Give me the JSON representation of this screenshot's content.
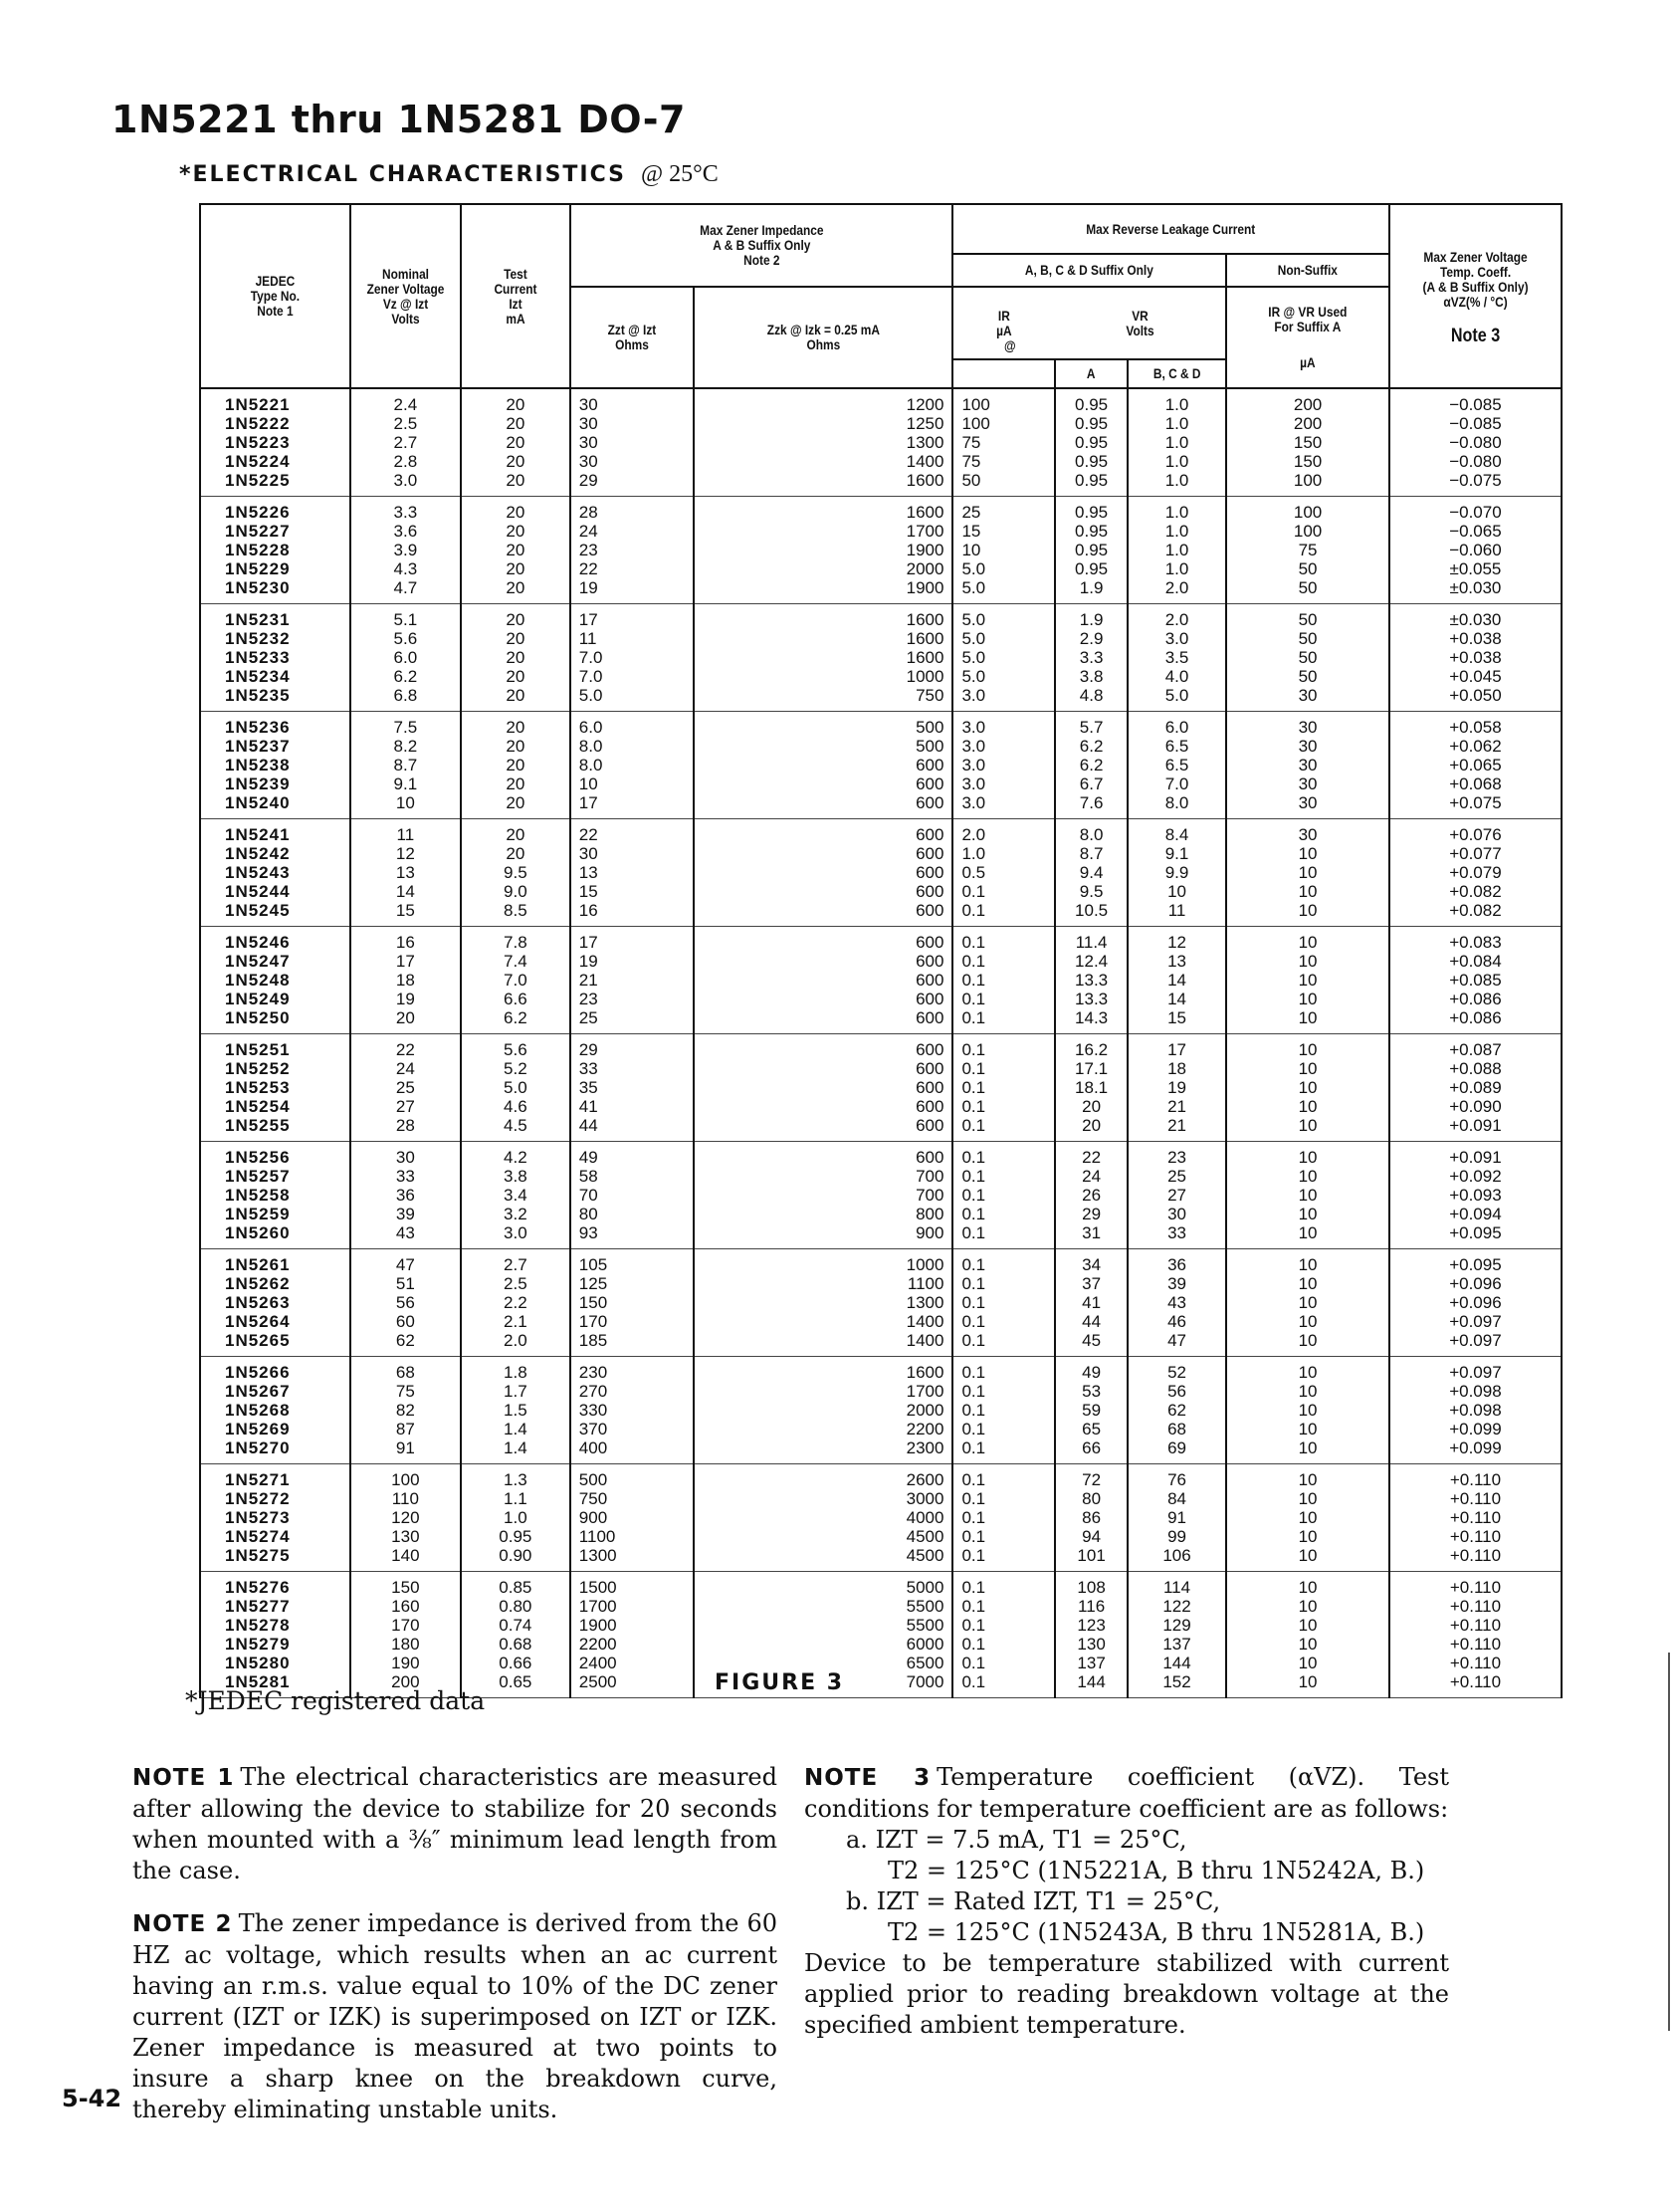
{
  "title": "1N5221 thru 1N5281 DO-7",
  "subtitle": {
    "caps": "*ELECTRICAL CHARACTERISTICS",
    "condition": "@ 25°C"
  },
  "headers": {
    "type": "JEDEC\nType No.\nNote 1",
    "vz": "Nominal\nZener Voltage\nVz @ Izt\nVolts",
    "izt": "Test\nCurrent\nIzt\nmA",
    "impedance": "Max Zener Impedance\nA & B Suffix Only\nNote 2",
    "zzt": "Zzt @ Izt\nOhms",
    "zzk": "Zzk @ Izk = 0.25 mA\nOhms",
    "leakage": "Max Reverse Leakage Current",
    "abcd": "A, B, C & D Suffix Only",
    "nonsuffix": "Non-Suffix",
    "ir": "IR\nµA",
    "at": "@",
    "vr": "VR\nVolts",
    "ir_ns": "IR @ VR Used\nFor Suffix A",
    "ir_ns_unit": "µA",
    "vr_a": "A",
    "vr_bcd": "B, C & D",
    "tc": "Max Zener Voltage\nTemp. Coeff.\n(A & B Suffix Only)\nαVZ(% / °C)",
    "tc_note": "Note 3"
  },
  "groups": [
    [
      [
        "1N5221",
        "2.4",
        "20",
        "30",
        "1200",
        "100",
        "0.95",
        "1.0",
        "200",
        "−0.085"
      ],
      [
        "1N5222",
        "2.5",
        "20",
        "30",
        "1250",
        "100",
        "0.95",
        "1.0",
        "200",
        "−0.085"
      ],
      [
        "1N5223",
        "2.7",
        "20",
        "30",
        "1300",
        "75",
        "0.95",
        "1.0",
        "150",
        "−0.080"
      ],
      [
        "1N5224",
        "2.8",
        "20",
        "30",
        "1400",
        "75",
        "0.95",
        "1.0",
        "150",
        "−0.080"
      ],
      [
        "1N5225",
        "3.0",
        "20",
        "29",
        "1600",
        "50",
        "0.95",
        "1.0",
        "100",
        "−0.075"
      ]
    ],
    [
      [
        "1N5226",
        "3.3",
        "20",
        "28",
        "1600",
        "25",
        "0.95",
        "1.0",
        "100",
        "−0.070"
      ],
      [
        "1N5227",
        "3.6",
        "20",
        "24",
        "1700",
        "15",
        "0.95",
        "1.0",
        "100",
        "−0.065"
      ],
      [
        "1N5228",
        "3.9",
        "20",
        "23",
        "1900",
        "10",
        "0.95",
        "1.0",
        "75",
        "−0.060"
      ],
      [
        "1N5229",
        "4.3",
        "20",
        "22",
        "2000",
        "5.0",
        "0.95",
        "1.0",
        "50",
        "±0.055"
      ],
      [
        "1N5230",
        "4.7",
        "20",
        "19",
        "1900",
        "5.0",
        "1.9",
        "2.0",
        "50",
        "±0.030"
      ]
    ],
    [
      [
        "1N5231",
        "5.1",
        "20",
        "17",
        "1600",
        "5.0",
        "1.9",
        "2.0",
        "50",
        "±0.030"
      ],
      [
        "1N5232",
        "5.6",
        "20",
        "11",
        "1600",
        "5.0",
        "2.9",
        "3.0",
        "50",
        "+0.038"
      ],
      [
        "1N5233",
        "6.0",
        "20",
        "7.0",
        "1600",
        "5.0",
        "3.3",
        "3.5",
        "50",
        "+0.038"
      ],
      [
        "1N5234",
        "6.2",
        "20",
        "7.0",
        "1000",
        "5.0",
        "3.8",
        "4.0",
        "50",
        "+0.045"
      ],
      [
        "1N5235",
        "6.8",
        "20",
        "5.0",
        "750",
        "3.0",
        "4.8",
        "5.0",
        "30",
        "+0.050"
      ]
    ],
    [
      [
        "1N5236",
        "7.5",
        "20",
        "6.0",
        "500",
        "3.0",
        "5.7",
        "6.0",
        "30",
        "+0.058"
      ],
      [
        "1N5237",
        "8.2",
        "20",
        "8.0",
        "500",
        "3.0",
        "6.2",
        "6.5",
        "30",
        "+0.062"
      ],
      [
        "1N5238",
        "8.7",
        "20",
        "8.0",
        "600",
        "3.0",
        "6.2",
        "6.5",
        "30",
        "+0.065"
      ],
      [
        "1N5239",
        "9.1",
        "20",
        "10",
        "600",
        "3.0",
        "6.7",
        "7.0",
        "30",
        "+0.068"
      ],
      [
        "1N5240",
        "10",
        "20",
        "17",
        "600",
        "3.0",
        "7.6",
        "8.0",
        "30",
        "+0.075"
      ]
    ],
    [
      [
        "1N5241",
        "11",
        "20",
        "22",
        "600",
        "2.0",
        "8.0",
        "8.4",
        "30",
        "+0.076"
      ],
      [
        "1N5242",
        "12",
        "20",
        "30",
        "600",
        "1.0",
        "8.7",
        "9.1",
        "10",
        "+0.077"
      ],
      [
        "1N5243",
        "13",
        "9.5",
        "13",
        "600",
        "0.5",
        "9.4",
        "9.9",
        "10",
        "+0.079"
      ],
      [
        "1N5244",
        "14",
        "9.0",
        "15",
        "600",
        "0.1",
        "9.5",
        "10",
        "10",
        "+0.082"
      ],
      [
        "1N5245",
        "15",
        "8.5",
        "16",
        "600",
        "0.1",
        "10.5",
        "11",
        "10",
        "+0.082"
      ]
    ],
    [
      [
        "1N5246",
        "16",
        "7.8",
        "17",
        "600",
        "0.1",
        "11.4",
        "12",
        "10",
        "+0.083"
      ],
      [
        "1N5247",
        "17",
        "7.4",
        "19",
        "600",
        "0.1",
        "12.4",
        "13",
        "10",
        "+0.084"
      ],
      [
        "1N5248",
        "18",
        "7.0",
        "21",
        "600",
        "0.1",
        "13.3",
        "14",
        "10",
        "+0.085"
      ],
      [
        "1N5249",
        "19",
        "6.6",
        "23",
        "600",
        "0.1",
        "13.3",
        "14",
        "10",
        "+0.086"
      ],
      [
        "1N5250",
        "20",
        "6.2",
        "25",
        "600",
        "0.1",
        "14.3",
        "15",
        "10",
        "+0.086"
      ]
    ],
    [
      [
        "1N5251",
        "22",
        "5.6",
        "29",
        "600",
        "0.1",
        "16.2",
        "17",
        "10",
        "+0.087"
      ],
      [
        "1N5252",
        "24",
        "5.2",
        "33",
        "600",
        "0.1",
        "17.1",
        "18",
        "10",
        "+0.088"
      ],
      [
        "1N5253",
        "25",
        "5.0",
        "35",
        "600",
        "0.1",
        "18.1",
        "19",
        "10",
        "+0.089"
      ],
      [
        "1N5254",
        "27",
        "4.6",
        "41",
        "600",
        "0.1",
        "20",
        "21",
        "10",
        "+0.090"
      ],
      [
        "1N5255",
        "28",
        "4.5",
        "44",
        "600",
        "0.1",
        "20",
        "21",
        "10",
        "+0.091"
      ]
    ],
    [
      [
        "1N5256",
        "30",
        "4.2",
        "49",
        "600",
        "0.1",
        "22",
        "23",
        "10",
        "+0.091"
      ],
      [
        "1N5257",
        "33",
        "3.8",
        "58",
        "700",
        "0.1",
        "24",
        "25",
        "10",
        "+0.092"
      ],
      [
        "1N5258",
        "36",
        "3.4",
        "70",
        "700",
        "0.1",
        "26",
        "27",
        "10",
        "+0.093"
      ],
      [
        "1N5259",
        "39",
        "3.2",
        "80",
        "800",
        "0.1",
        "29",
        "30",
        "10",
        "+0.094"
      ],
      [
        "1N5260",
        "43",
        "3.0",
        "93",
        "900",
        "0.1",
        "31",
        "33",
        "10",
        "+0.095"
      ]
    ],
    [
      [
        "1N5261",
        "47",
        "2.7",
        "105",
        "1000",
        "0.1",
        "34",
        "36",
        "10",
        "+0.095"
      ],
      [
        "1N5262",
        "51",
        "2.5",
        "125",
        "1100",
        "0.1",
        "37",
        "39",
        "10",
        "+0.096"
      ],
      [
        "1N5263",
        "56",
        "2.2",
        "150",
        "1300",
        "0.1",
        "41",
        "43",
        "10",
        "+0.096"
      ],
      [
        "1N5264",
        "60",
        "2.1",
        "170",
        "1400",
        "0.1",
        "44",
        "46",
        "10",
        "+0.097"
      ],
      [
        "1N5265",
        "62",
        "2.0",
        "185",
        "1400",
        "0.1",
        "45",
        "47",
        "10",
        "+0.097"
      ]
    ],
    [
      [
        "1N5266",
        "68",
        "1.8",
        "230",
        "1600",
        "0.1",
        "49",
        "52",
        "10",
        "+0.097"
      ],
      [
        "1N5267",
        "75",
        "1.7",
        "270",
        "1700",
        "0.1",
        "53",
        "56",
        "10",
        "+0.098"
      ],
      [
        "1N5268",
        "82",
        "1.5",
        "330",
        "2000",
        "0.1",
        "59",
        "62",
        "10",
        "+0.098"
      ],
      [
        "1N5269",
        "87",
        "1.4",
        "370",
        "2200",
        "0.1",
        "65",
        "68",
        "10",
        "+0.099"
      ],
      [
        "1N5270",
        "91",
        "1.4",
        "400",
        "2300",
        "0.1",
        "66",
        "69",
        "10",
        "+0.099"
      ]
    ],
    [
      [
        "1N5271",
        "100",
        "1.3",
        "500",
        "2600",
        "0.1",
        "72",
        "76",
        "10",
        "+0.110"
      ],
      [
        "1N5272",
        "110",
        "1.1",
        "750",
        "3000",
        "0.1",
        "80",
        "84",
        "10",
        "+0.110"
      ],
      [
        "1N5273",
        "120",
        "1.0",
        "900",
        "4000",
        "0.1",
        "86",
        "91",
        "10",
        "+0.110"
      ],
      [
        "1N5274",
        "130",
        "0.95",
        "1100",
        "4500",
        "0.1",
        "94",
        "99",
        "10",
        "+0.110"
      ],
      [
        "1N5275",
        "140",
        "0.90",
        "1300",
        "4500",
        "0.1",
        "101",
        "106",
        "10",
        "+0.110"
      ]
    ],
    [
      [
        "1N5276",
        "150",
        "0.85",
        "1500",
        "5000",
        "0.1",
        "108",
        "114",
        "10",
        "+0.110"
      ],
      [
        "1N5277",
        "160",
        "0.80",
        "1700",
        "5500",
        "0.1",
        "116",
        "122",
        "10",
        "+0.110"
      ],
      [
        "1N5278",
        "170",
        "0.74",
        "1900",
        "5500",
        "0.1",
        "123",
        "129",
        "10",
        "+0.110"
      ],
      [
        "1N5279",
        "180",
        "0.68",
        "2200",
        "6000",
        "0.1",
        "130",
        "137",
        "10",
        "+0.110"
      ],
      [
        "1N5280",
        "190",
        "0.66",
        "2400",
        "6500",
        "0.1",
        "137",
        "144",
        "10",
        "+0.110"
      ],
      [
        "1N5281",
        "200",
        "0.65",
        "2500",
        "7000",
        "0.1",
        "144",
        "152",
        "10",
        "+0.110"
      ]
    ]
  ],
  "footnote": "*JEDEC registered data",
  "figure": "FIGURE 3",
  "notes": {
    "note1_head": "NOTE 1",
    "note1": "The electrical characteristics are measured after allowing the device to stabilize for 20 seconds when mounted with a ⅜″ minimum lead length from the case.",
    "note2_head": "NOTE 2",
    "note2": "The zener impedance is derived from the 60 HZ ac voltage, which results when an ac current having an r.m.s. value equal to 10% of the DC zener current (IZT or IZK) is superimposed on IZT or IZK. Zener impedance is measured at two points to insure a sharp knee on the breakdown curve, thereby eliminating unstable units.",
    "note3_head": "NOTE 3",
    "note3": "Temperature coefficient (αVZ). Test conditions for temperature coefficient are as follows:",
    "a1": "a.  IZT = 7.5 mA, T1 = 25°C,",
    "a2": "T2 = 125°C (1N5221A, B thru 1N5242A, B.)",
    "b1": "b.  IZT = Rated IZT, T1 = 25°C,",
    "b2": "T2 = 125°C (1N5243A, B thru 1N5281A, B.)",
    "tail": "Device to be temperature stabilized with current applied prior to reading breakdown voltage at the specified ambient temperature."
  },
  "page_number": "5-42"
}
